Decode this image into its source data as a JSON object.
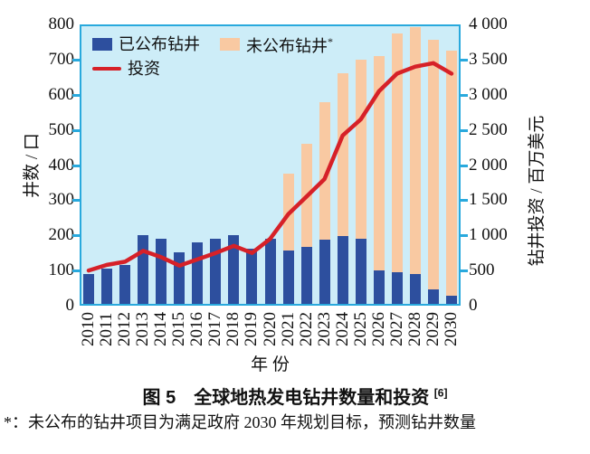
{
  "figure": {
    "caption_text": "图 5　全球地热发电钻井数量和投资",
    "caption_superscript": "[6]",
    "footnote": "*：未公布的钻井项目为满足政府 2030 年规划目标，预测钻井数量"
  },
  "chart_data": {
    "type": "composite",
    "subtype": "stacked-bar-with-line",
    "categories": [
      "2010",
      "2011",
      "2012",
      "2013",
      "2014",
      "2015",
      "2016",
      "2017",
      "2018",
      "2019",
      "2020",
      "2021",
      "2022",
      "2023",
      "2024",
      "2025",
      "2026",
      "2027",
      "2028",
      "2029",
      "2030"
    ],
    "series": [
      {
        "name": "已公布钻井",
        "type": "bar",
        "stack": "wells",
        "axis": "left",
        "color": "#2d4f9e",
        "values": [
          90,
          105,
          115,
          200,
          190,
          152,
          180,
          190,
          200,
          163,
          190,
          158,
          168,
          188,
          197,
          190,
          100,
          95,
          90,
          46,
          28
        ]
      },
      {
        "name": "未公布钻井",
        "legend_suffix": "*",
        "type": "bar",
        "stack": "wells",
        "axis": "left",
        "color": "#f9c9a2",
        "values": [
          0,
          0,
          0,
          0,
          0,
          0,
          0,
          0,
          0,
          0,
          0,
          217,
          292,
          392,
          463,
          510,
          610,
          680,
          703,
          709,
          698
        ]
      },
      {
        "name": "投资",
        "type": "line",
        "axis": "right",
        "color": "#d62128",
        "values": [
          500,
          580,
          625,
          780,
          690,
          570,
          660,
          750,
          850,
          750,
          950,
          1300,
          1550,
          1800,
          2420,
          2650,
          3050,
          3300,
          3400,
          3450,
          3300
        ]
      }
    ],
    "left_axis": {
      "label": "井数 / 口",
      "min": 0,
      "max": 800,
      "step": 100,
      "tick_labels": [
        "0",
        "100",
        "200",
        "300",
        "400",
        "500",
        "600",
        "700",
        "800"
      ]
    },
    "right_axis": {
      "label": "钻井投资 / 百万美元",
      "min": 0,
      "max": 4000,
      "step": 500,
      "tick_labels": [
        "0",
        "500",
        "1 000",
        "1 500",
        "2 000",
        "2 500",
        "3 000",
        "3 500",
        "4 000"
      ]
    },
    "x_axis": {
      "label": "年 份"
    },
    "legend_position": "top-left-inside",
    "grid": false,
    "plot_background_color": "#cdedf8",
    "frame_color": "#29a9dd",
    "text_color": "#111111"
  }
}
